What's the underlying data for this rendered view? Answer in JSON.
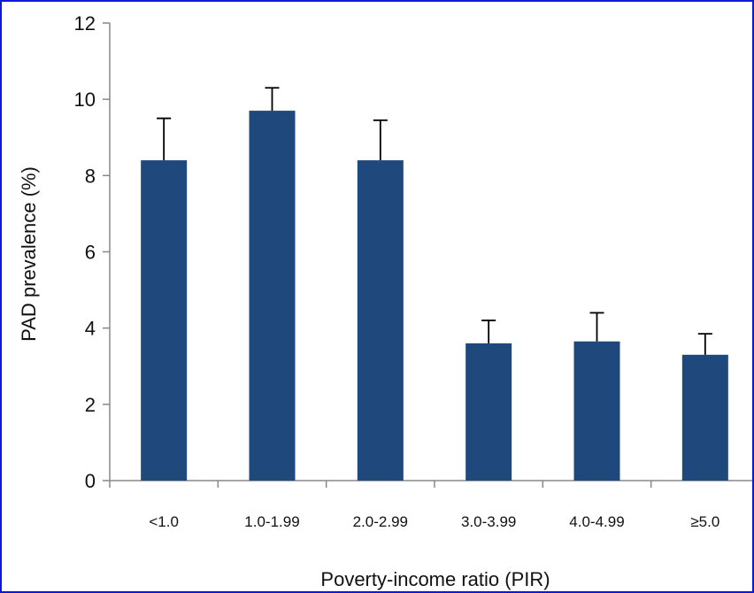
{
  "chart_data": {
    "type": "bar",
    "xlabel": "Poverty-income ratio (PIR)",
    "ylabel": "PAD prevalence (%)",
    "ylim": [
      0,
      12
    ],
    "yticks": [
      "0",
      "2",
      "4",
      "6",
      "8",
      "10",
      "12"
    ],
    "categories": [
      "<1.0",
      "1.0-1.99",
      "2.0-2.99",
      "3.0-3.99",
      "4.0-4.99",
      "≥5.0"
    ],
    "values": [
      8.4,
      9.7,
      8.4,
      3.6,
      3.65,
      3.3
    ],
    "error_upper": [
      1.1,
      0.6,
      1.05,
      0.6,
      0.75,
      0.55
    ],
    "grid": false,
    "colors": {
      "bar": "#1f497d",
      "error": "#000000",
      "axis": "#888888"
    }
  }
}
